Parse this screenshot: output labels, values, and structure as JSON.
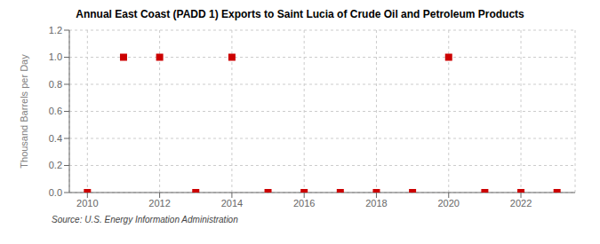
{
  "chart_data": {
    "type": "scatter",
    "title": "Annual East Coast (PADD 1) Exports to Saint Lucia of Crude Oil and Petroleum Products",
    "y_label": "Thousand Barrels per Day",
    "annotations": [
      "Source: U.S. Energy Information Administration"
    ],
    "x": [
      2010,
      2011,
      2012,
      2013,
      2014,
      2015,
      2016,
      2017,
      2018,
      2019,
      2020,
      2021,
      2022,
      2023
    ],
    "values": [
      0.0,
      1.0,
      1.0,
      0.0,
      1.0,
      0.0,
      0.0,
      0.0,
      0.0,
      0.0,
      1.0,
      0.0,
      0.0,
      0.0
    ],
    "color": "#cc0000",
    "marker": "square",
    "xlim": [
      2009.5,
      2023.5
    ],
    "ylim": [
      0.0,
      1.2
    ],
    "xticks": [
      2010,
      2012,
      2014,
      2016,
      2018,
      2020,
      2022
    ],
    "yticks": [
      {
        "value": 0.0,
        "label": "0.0"
      },
      0.2,
      0.4,
      0.6,
      0.8,
      {
        "value": 1.0,
        "label": "1.0"
      },
      1.2
    ],
    "grid": true
  }
}
